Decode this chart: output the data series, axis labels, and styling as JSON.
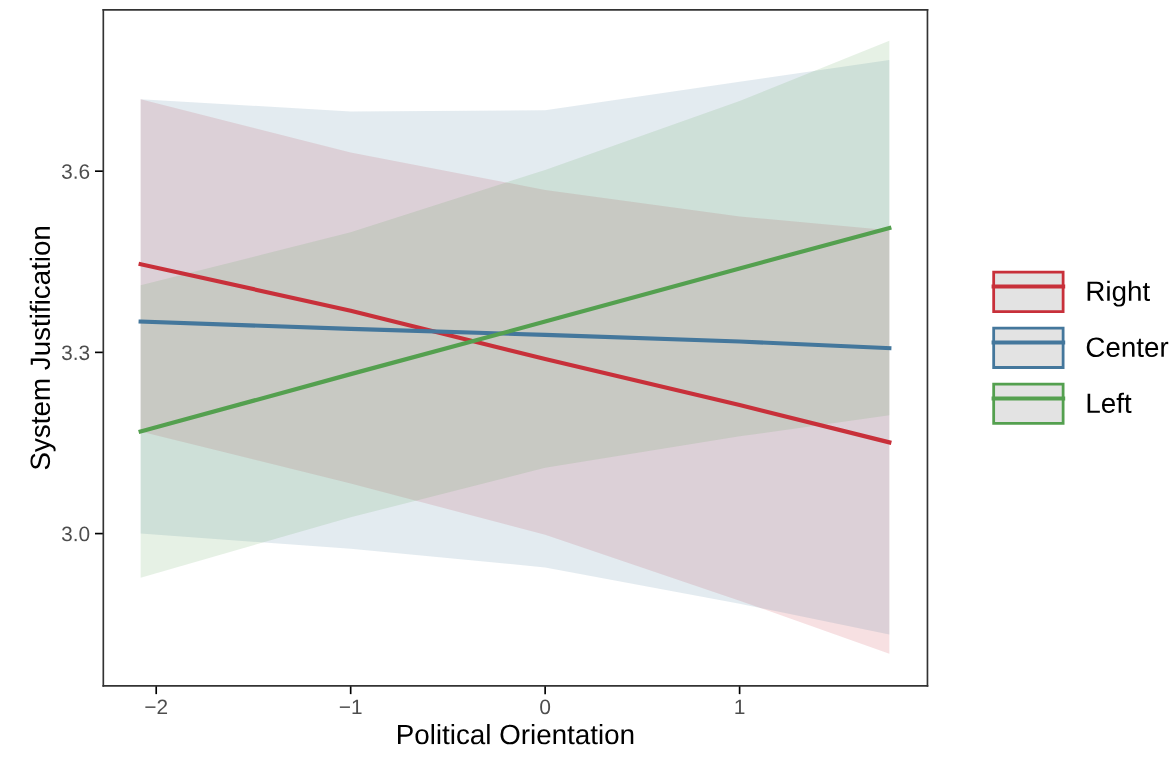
{
  "chart_data": {
    "type": "line",
    "xlabel": "Political Orientation",
    "ylabel": "System Justification",
    "xlim": [
      -2.272,
      1.966
    ],
    "ylim": [
      2.748,
      3.867
    ],
    "xticks": [
      {
        "value": -2,
        "label": "−2"
      },
      {
        "value": -1,
        "label": "−1"
      },
      0,
      1
    ],
    "yticks": [
      {
        "value": 3.0,
        "label": "3.0"
      },
      3.3,
      3.6
    ],
    "grid": false,
    "legend": "right",
    "line_style": "solid",
    "marker": "none",
    "series": [
      {
        "name": "Right",
        "color": "#c8303a",
        "x": [
          -2.08,
          -1,
          0,
          1,
          1.77
        ],
        "values": [
          3.446,
          3.369,
          3.289,
          3.213,
          3.151
        ],
        "lower": [
          3.169,
          3.083,
          2.998,
          2.889,
          2.801
        ],
        "upper": [
          3.719,
          3.631,
          3.569,
          3.525,
          3.502
        ]
      },
      {
        "name": "Center",
        "color": "#44779c",
        "x": [
          -2.08,
          -1,
          0,
          1,
          1.77
        ],
        "values": [
          3.351,
          3.339,
          3.329,
          3.318,
          3.307
        ],
        "lower": [
          3.0,
          2.975,
          2.944,
          2.884,
          2.833
        ],
        "upper": [
          3.719,
          3.699,
          3.701,
          3.748,
          3.784
        ]
      },
      {
        "name": "Left",
        "color": "#54a04f",
        "x": [
          -2.08,
          -1,
          0,
          1,
          1.77
        ],
        "values": [
          3.169,
          3.264,
          3.351,
          3.439,
          3.506
        ],
        "lower": [
          2.927,
          3.027,
          3.109,
          3.161,
          3.196
        ],
        "upper": [
          3.411,
          3.499,
          3.602,
          3.716,
          3.816
        ]
      }
    ]
  }
}
